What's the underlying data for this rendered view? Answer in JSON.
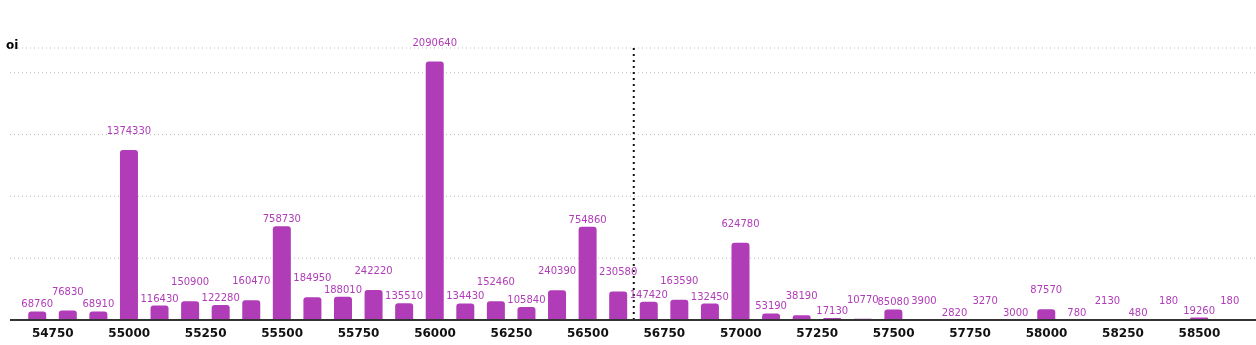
{
  "chart_data": {
    "type": "bar",
    "ylabel": "oi",
    "x": [
      54700,
      54800,
      54900,
      55000,
      55100,
      55200,
      55300,
      55400,
      55500,
      55600,
      55700,
      55800,
      55900,
      56000,
      56100,
      56200,
      56300,
      56400,
      56500,
      56600,
      56700,
      56800,
      56900,
      57000,
      57100,
      57200,
      57300,
      57400,
      57500,
      57600,
      57700,
      57800,
      57900,
      58000,
      58100,
      58200,
      58300,
      58400,
      58500,
      58600
    ],
    "values": [
      68760,
      76830,
      68910,
      1374330,
      116430,
      150900,
      122280,
      160470,
      758730,
      184950,
      188010,
      242220,
      135510,
      2090640,
      134430,
      152460,
      105840,
      240390,
      754860,
      230580,
      147420,
      163590,
      132450,
      624780,
      53190,
      38190,
      17130,
      10770,
      85080,
      3900,
      2820,
      3270,
      3000,
      87570,
      780,
      2130,
      480,
      180,
      19260,
      180
    ],
    "color": "#b03cb8",
    "xlim": [
      54610,
      58685
    ],
    "xticks": [
      54750,
      55000,
      55250,
      55500,
      55750,
      56000,
      56250,
      56500,
      56750,
      57000,
      57250,
      57500,
      57750,
      58000,
      58250,
      58500
    ],
    "ylim": [
      0,
      2200000
    ],
    "yticks": [
      {
        "value": 0,
        "label": null
      },
      {
        "value": 500000,
        "label": null
      },
      {
        "value": 1000000,
        "label": null
      },
      {
        "value": 1500000,
        "label": null
      },
      {
        "value": 2000000,
        "label": null
      }
    ],
    "grid": "y",
    "data_labels": true,
    "legend": false,
    "ref_lines": [
      {
        "axis": "x",
        "value": 56650,
        "color": "#111111",
        "line_style": "dotted"
      }
    ]
  }
}
